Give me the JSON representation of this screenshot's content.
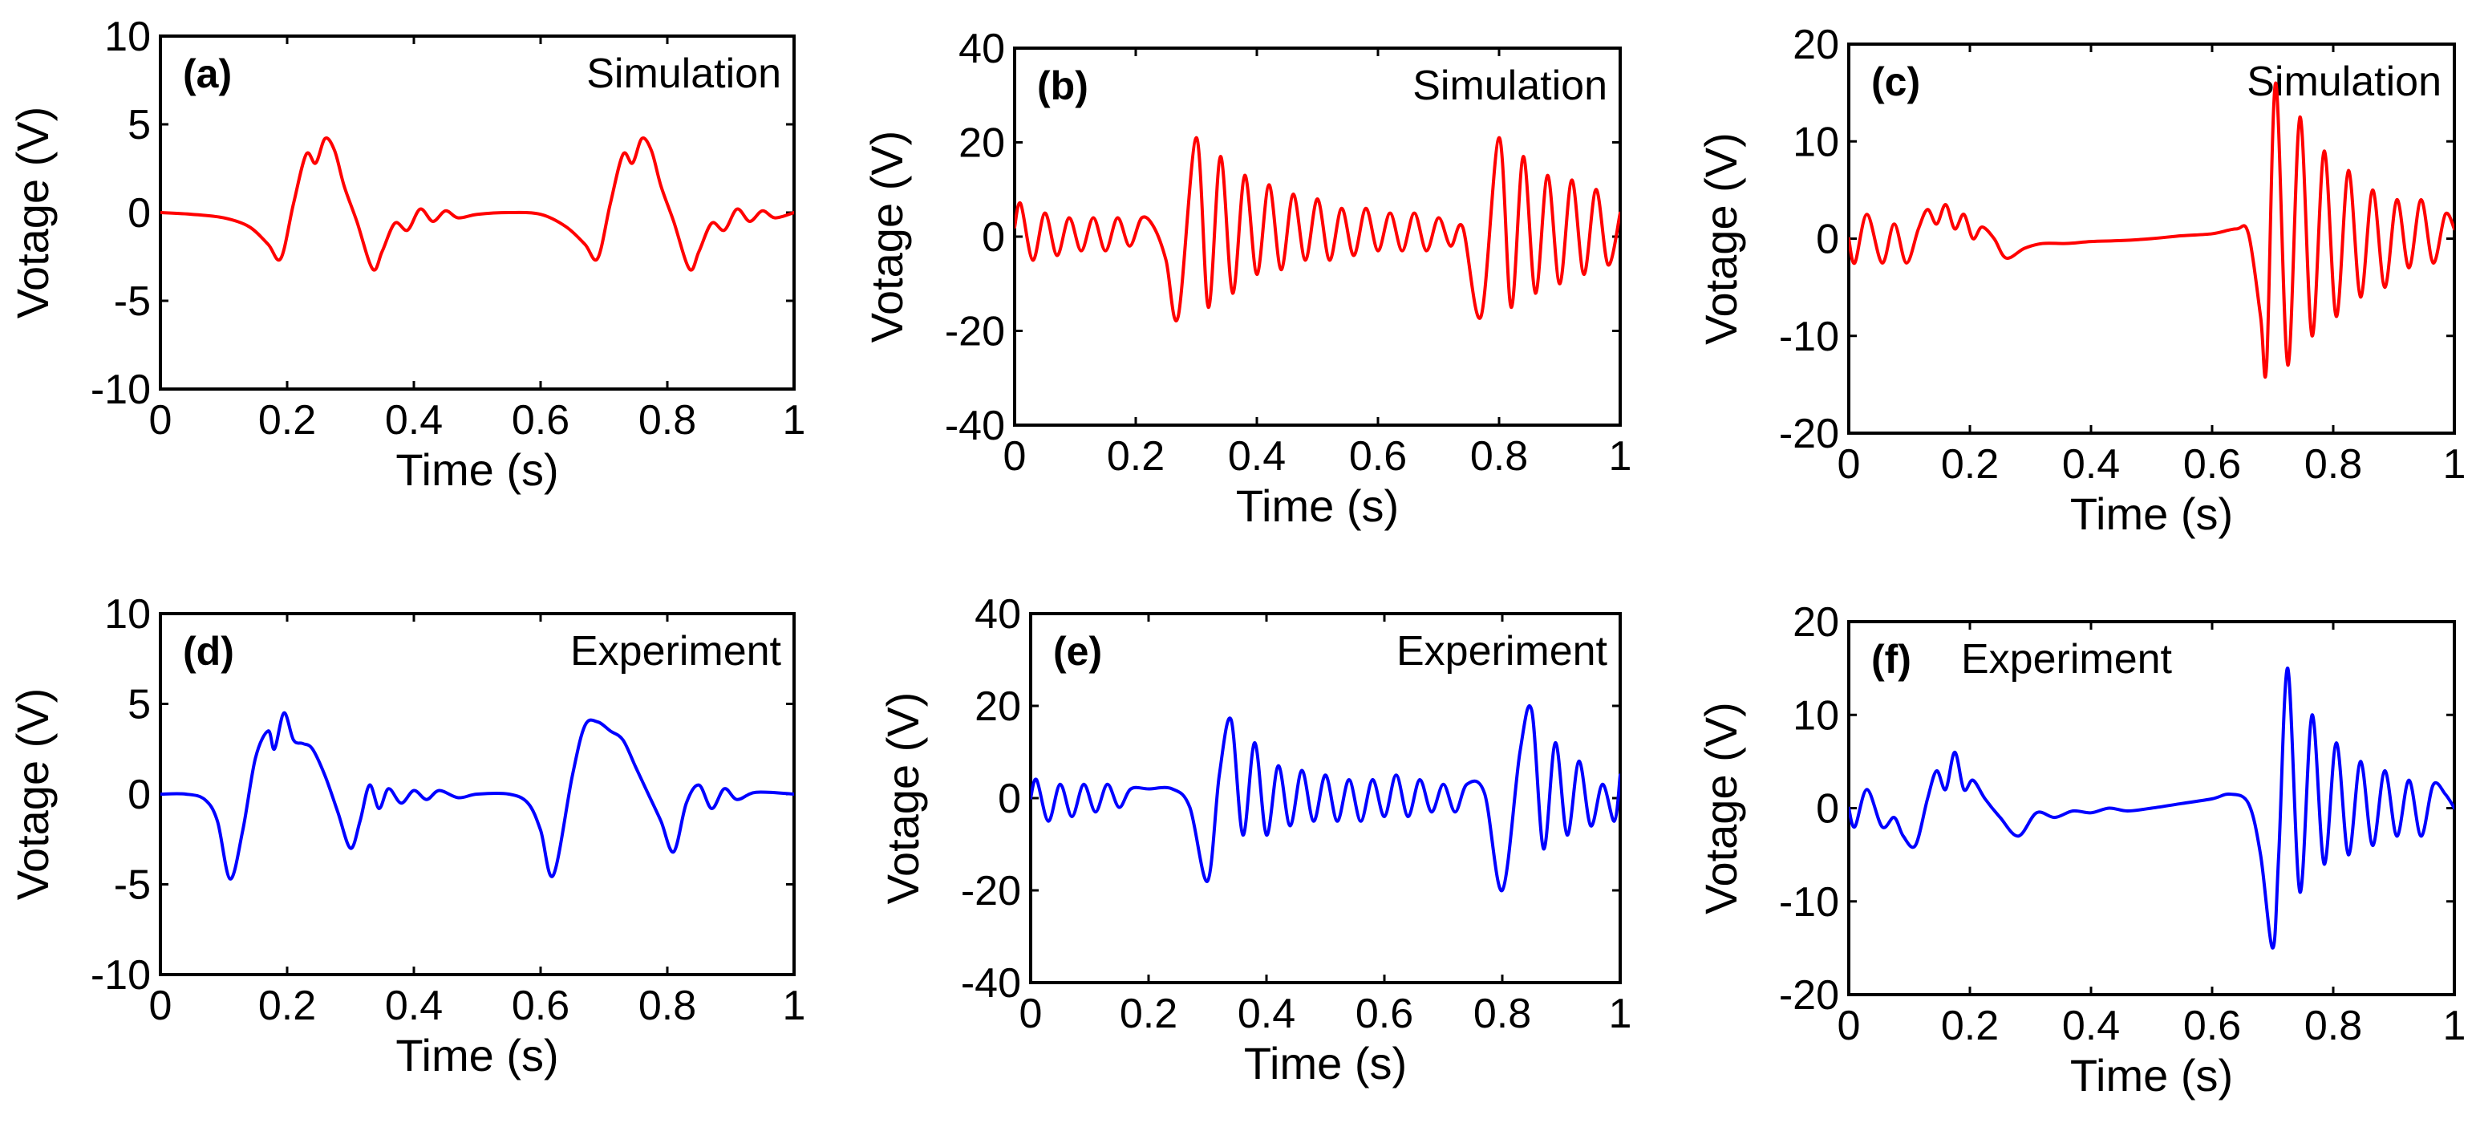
{
  "colors": {
    "simulation": "#ff0000",
    "experiment": "#0000ff",
    "axes": "#000000"
  },
  "chart_data": [
    {
      "type": "line",
      "panel": "(a)",
      "title": "Simulation",
      "series_color": "#ff0000",
      "xlabel": "Time (s)",
      "ylabel": "Votage (V)",
      "xlim": [
        0,
        1
      ],
      "ylim": [
        -10,
        10
      ],
      "xticks": [
        0,
        0.2,
        0.4,
        0.6,
        0.8,
        1
      ],
      "xtick_labels": [
        "0",
        "0.2",
        "0.4",
        "0.6",
        "0.8",
        "1"
      ],
      "yticks": [
        -10,
        -5,
        0,
        5,
        10
      ],
      "ytick_labels": [
        "-10",
        "-5",
        "0",
        "5",
        "10"
      ],
      "x": [
        0,
        0.05,
        0.1,
        0.14,
        0.17,
        0.19,
        0.21,
        0.23,
        0.245,
        0.26,
        0.275,
        0.29,
        0.31,
        0.335,
        0.35,
        0.37,
        0.39,
        0.41,
        0.43,
        0.45,
        0.47,
        0.5,
        0.55,
        0.6,
        0.64,
        0.67,
        0.69,
        0.71,
        0.73,
        0.745,
        0.76,
        0.775,
        0.79,
        0.81,
        0.835,
        0.85,
        0.87,
        0.89,
        0.91,
        0.93,
        0.95,
        0.97,
        1.0
      ],
      "y": [
        0,
        -0.1,
        -0.3,
        -0.8,
        -1.8,
        -2.6,
        0.5,
        3.3,
        2.8,
        4.2,
        3.5,
        1.5,
        -0.5,
        -3.2,
        -2.2,
        -0.6,
        -1.0,
        0.2,
        -0.5,
        0.1,
        -0.3,
        -0.1,
        0,
        -0.1,
        -0.8,
        -1.8,
        -2.6,
        0.5,
        3.3,
        2.8,
        4.2,
        3.5,
        1.5,
        -0.5,
        -3.2,
        -2.2,
        -0.6,
        -1.0,
        0.2,
        -0.5,
        0.1,
        -0.3,
        0
      ]
    },
    {
      "type": "line",
      "panel": "(b)",
      "title": "Simulation",
      "series_color": "#ff0000",
      "xlabel": "Time (s)",
      "ylabel": "Votage (V)",
      "xlim": [
        0,
        1
      ],
      "ylim": [
        -40,
        40
      ],
      "xticks": [
        0,
        0.2,
        0.4,
        0.6,
        0.8,
        1
      ],
      "xtick_labels": [
        "0",
        "0.2",
        "0.4",
        "0.6",
        "0.8",
        "1"
      ],
      "yticks": [
        -40,
        -20,
        0,
        20,
        40
      ],
      "ytick_labels": [
        "-40",
        "-20",
        "0",
        "20",
        "40"
      ],
      "x": [
        0,
        0.01,
        0.03,
        0.05,
        0.07,
        0.09,
        0.11,
        0.13,
        0.15,
        0.17,
        0.19,
        0.21,
        0.23,
        0.25,
        0.27,
        0.3,
        0.32,
        0.34,
        0.36,
        0.38,
        0.4,
        0.42,
        0.44,
        0.46,
        0.48,
        0.5,
        0.52,
        0.54,
        0.56,
        0.58,
        0.6,
        0.62,
        0.64,
        0.66,
        0.68,
        0.7,
        0.72,
        0.74,
        0.77,
        0.8,
        0.82,
        0.84,
        0.86,
        0.88,
        0.9,
        0.92,
        0.94,
        0.96,
        0.98,
        1.0
      ],
      "y": [
        2,
        7,
        -5,
        5,
        -4,
        4,
        -3,
        4,
        -3,
        4,
        -2,
        4,
        2,
        -5,
        -17,
        21,
        -15,
        17,
        -12,
        13,
        -8,
        11,
        -7,
        9,
        -5,
        8,
        -5,
        6,
        -4,
        6,
        -3,
        5,
        -3,
        5,
        -3,
        4,
        -2,
        2,
        -17,
        21,
        -15,
        17,
        -12,
        13,
        -10,
        12,
        -8,
        10,
        -6,
        5
      ]
    },
    {
      "type": "line",
      "panel": "(c)",
      "title": "Simulation",
      "series_color": "#ff0000",
      "xlabel": "Time (s)",
      "ylabel": "Votage (V)",
      "xlim": [
        0,
        1
      ],
      "ylim": [
        -20,
        20
      ],
      "xticks": [
        0,
        0.2,
        0.4,
        0.6,
        0.8,
        1
      ],
      "xtick_labels": [
        "0",
        "0.2",
        "0.4",
        "0.6",
        "0.8",
        "1"
      ],
      "yticks": [
        -20,
        -10,
        0,
        10,
        20
      ],
      "ytick_labels": [
        "-20",
        "-10",
        "0",
        "10",
        "20"
      ],
      "x": [
        0,
        0.01,
        0.03,
        0.055,
        0.075,
        0.095,
        0.115,
        0.13,
        0.145,
        0.16,
        0.175,
        0.19,
        0.205,
        0.22,
        0.24,
        0.26,
        0.29,
        0.32,
        0.36,
        0.4,
        0.45,
        0.5,
        0.55,
        0.6,
        0.64,
        0.66,
        0.68,
        0.69,
        0.705,
        0.725,
        0.745,
        0.765,
        0.785,
        0.805,
        0.825,
        0.845,
        0.865,
        0.885,
        0.905,
        0.925,
        0.945,
        0.965,
        0.985,
        1.0
      ],
      "y": [
        0,
        -2.5,
        2.5,
        -2.5,
        1.5,
        -2.5,
        1,
        3,
        1.5,
        3.5,
        1,
        2.5,
        0,
        1.2,
        0,
        -2,
        -1,
        -0.5,
        -0.5,
        -0.3,
        -0.2,
        0,
        0.3,
        0.5,
        1,
        0.5,
        -8,
        -13,
        16,
        -13,
        12.5,
        -10,
        9,
        -8,
        7,
        -6,
        5,
        -5,
        4,
        -3,
        4,
        -2.5,
        2.5,
        1
      ]
    },
    {
      "type": "line",
      "panel": "(d)",
      "title": "Experiment",
      "series_color": "#0000ff",
      "xlabel": "Time (s)",
      "ylabel": "Votage (V)",
      "xlim": [
        0,
        1
      ],
      "ylim": [
        -10,
        10
      ],
      "xticks": [
        0,
        0.2,
        0.4,
        0.6,
        0.8,
        1
      ],
      "xtick_labels": [
        "0",
        "0.2",
        "0.4",
        "0.6",
        "0.8",
        "1"
      ],
      "yticks": [
        -10,
        -5,
        0,
        5,
        10
      ],
      "ytick_labels": [
        "-10",
        "-5",
        "0",
        "5",
        "10"
      ],
      "x": [
        0,
        0.04,
        0.07,
        0.09,
        0.11,
        0.13,
        0.15,
        0.17,
        0.18,
        0.195,
        0.21,
        0.225,
        0.24,
        0.26,
        0.28,
        0.3,
        0.315,
        0.33,
        0.345,
        0.36,
        0.38,
        0.4,
        0.42,
        0.44,
        0.47,
        0.5,
        0.55,
        0.58,
        0.6,
        0.62,
        0.65,
        0.67,
        0.69,
        0.71,
        0.73,
        0.75,
        0.77,
        0.79,
        0.81,
        0.83,
        0.85,
        0.87,
        0.89,
        0.91,
        0.94,
        1.0
      ],
      "y": [
        0,
        0,
        -0.3,
        -1.5,
        -4.7,
        -2,
        2,
        3.5,
        2.5,
        4.5,
        3,
        2.8,
        2.5,
        1,
        -1,
        -3,
        -1.5,
        0.5,
        -0.8,
        0.3,
        -0.5,
        0.2,
        -0.3,
        0.2,
        -0.2,
        0,
        0,
        -0.5,
        -2,
        -4.5,
        1,
        3.8,
        4,
        3.5,
        3,
        1.5,
        0,
        -1.5,
        -3.2,
        -0.5,
        0.5,
        -0.8,
        0.3,
        -0.3,
        0.1,
        0
      ]
    },
    {
      "type": "line",
      "panel": "(e)",
      "title": "Experiment",
      "series_color": "#0000ff",
      "xlabel": "Time (s)",
      "ylabel": "Votage (V)",
      "xlim": [
        0,
        1
      ],
      "ylim": [
        -40,
        40
      ],
      "xticks": [
        0,
        0.2,
        0.4,
        0.6,
        0.8,
        1
      ],
      "xtick_labels": [
        "0",
        "0.2",
        "0.4",
        "0.6",
        "0.8",
        "1"
      ],
      "yticks": [
        -40,
        -20,
        0,
        20,
        40
      ],
      "ytick_labels": [
        "-40",
        "-20",
        "0",
        "20",
        "40"
      ],
      "x": [
        0,
        0.01,
        0.03,
        0.05,
        0.07,
        0.09,
        0.11,
        0.13,
        0.15,
        0.17,
        0.2,
        0.24,
        0.27,
        0.3,
        0.32,
        0.34,
        0.36,
        0.38,
        0.4,
        0.42,
        0.44,
        0.46,
        0.48,
        0.5,
        0.52,
        0.54,
        0.56,
        0.58,
        0.6,
        0.62,
        0.64,
        0.66,
        0.68,
        0.7,
        0.72,
        0.74,
        0.77,
        0.8,
        0.83,
        0.85,
        0.87,
        0.89,
        0.91,
        0.93,
        0.95,
        0.97,
        0.99,
        1.0
      ],
      "y": [
        0,
        4,
        -5,
        3,
        -4,
        3,
        -3,
        3,
        -2,
        2,
        2,
        2,
        -2,
        -18,
        5,
        17,
        -8,
        12,
        -8,
        7,
        -6,
        6,
        -5,
        5,
        -5,
        4,
        -5,
        4,
        -4,
        5,
        -4,
        4,
        -3,
        3,
        -3,
        3,
        1,
        -20,
        10,
        19,
        -11,
        12,
        -8,
        8,
        -6,
        3,
        -5,
        5
      ]
    },
    {
      "type": "line",
      "panel": "(f)",
      "title": "Experiment",
      "series_color": "#0000ff",
      "xlabel": "Time (s)",
      "ylabel": "Votage (V)",
      "xlim": [
        0,
        1
      ],
      "ylim": [
        -20,
        20
      ],
      "xticks": [
        0,
        0.2,
        0.4,
        0.6,
        0.8,
        1
      ],
      "xtick_labels": [
        "0",
        "0.2",
        "0.4",
        "0.6",
        "0.8",
        "1"
      ],
      "yticks": [
        -20,
        -10,
        0,
        10,
        20
      ],
      "ytick_labels": [
        "-20",
        "-10",
        "0",
        "10",
        "20"
      ],
      "x": [
        0,
        0.01,
        0.03,
        0.055,
        0.075,
        0.09,
        0.11,
        0.13,
        0.145,
        0.16,
        0.175,
        0.19,
        0.205,
        0.225,
        0.25,
        0.28,
        0.31,
        0.34,
        0.37,
        0.4,
        0.43,
        0.46,
        0.5,
        0.55,
        0.6,
        0.63,
        0.66,
        0.68,
        0.7,
        0.71,
        0.725,
        0.745,
        0.765,
        0.785,
        0.805,
        0.825,
        0.845,
        0.865,
        0.885,
        0.905,
        0.925,
        0.945,
        0.965,
        0.985,
        1.0
      ],
      "y": [
        0,
        -2,
        2,
        -2,
        -1,
        -3,
        -4,
        1,
        4,
        2,
        6,
        2,
        3,
        1,
        -1,
        -3,
        -0.5,
        -1,
        -0.3,
        -0.5,
        0,
        -0.3,
        0,
        0.5,
        1,
        1.5,
        0.5,
        -5,
        -15,
        -5,
        15,
        -9,
        10,
        -6,
        7,
        -5,
        5,
        -4,
        4,
        -3,
        3,
        -3,
        2.5,
        1.5,
        0
      ]
    }
  ]
}
